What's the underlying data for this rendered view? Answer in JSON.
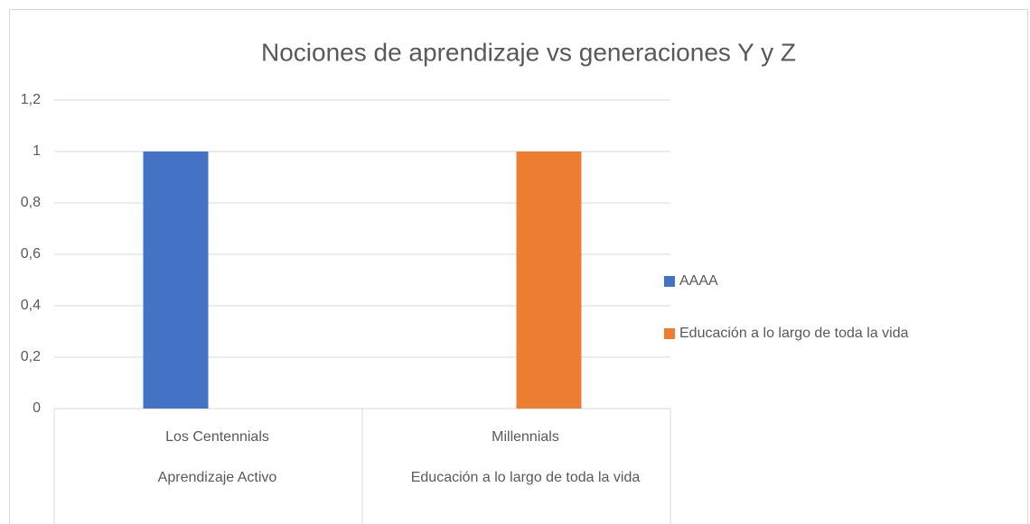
{
  "chart_data": {
    "type": "bar",
    "title": "Nociones de aprendizaje vs generaciones Y y Z",
    "categories": [
      "Los Centennials",
      "Millennials"
    ],
    "subcategories": [
      "Aprendizaje Activo",
      "Educación a lo largo de toda la vida"
    ],
    "series": [
      {
        "name": "AAAA",
        "color": "#4472c4",
        "values": [
          1,
          null
        ]
      },
      {
        "name": "Educación a lo largo de toda la vida",
        "color": "#ed7d31",
        "values": [
          null,
          1
        ]
      }
    ],
    "ylim": [
      0,
      1.2
    ],
    "yticks": [
      0,
      {
        "value": 0.2,
        "label": "0,2"
      },
      {
        "value": 0.4,
        "label": "0,4"
      },
      {
        "value": 0.6,
        "label": "0,6"
      },
      {
        "value": 0.8,
        "label": "0,8"
      },
      1,
      {
        "value": 1.2,
        "label": "1,2"
      }
    ],
    "grid": true,
    "legend": "right"
  }
}
